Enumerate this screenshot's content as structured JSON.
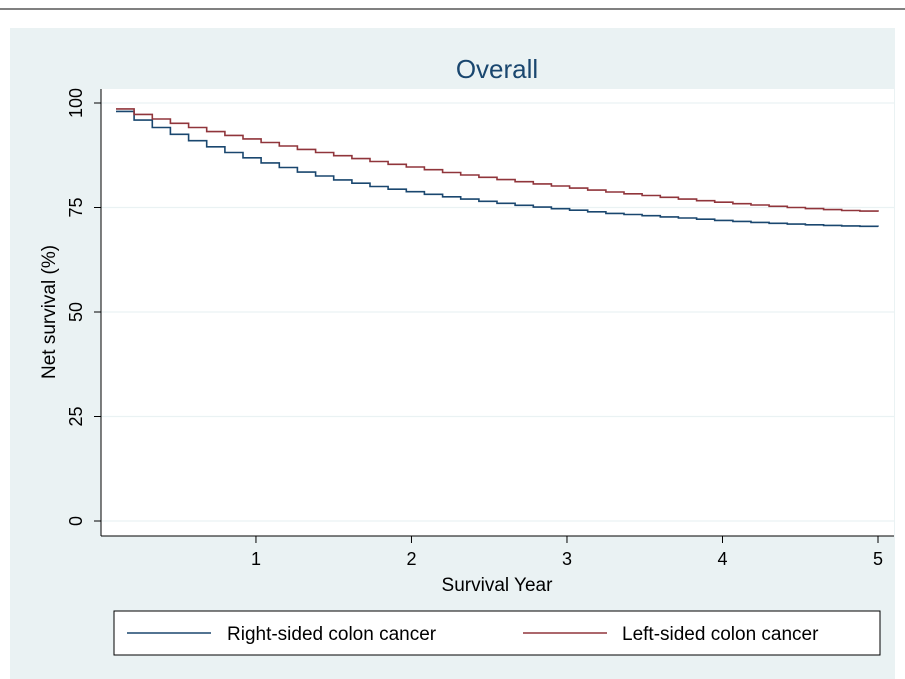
{
  "chart_data": {
    "type": "line",
    "title": "Overall",
    "xlabel": "Survival Year",
    "ylabel": "Net survival (%)",
    "xlim": [
      0.0,
      5.0
    ],
    "ylim": [
      0,
      100
    ],
    "xticks": [
      1,
      2,
      3,
      4,
      5
    ],
    "yticks": [
      0,
      25,
      50,
      75,
      100
    ],
    "grid": true,
    "legend_position": "bottom",
    "colors": {
      "frame_bg": "#eaf2f3",
      "plot_bg": "#ffffff",
      "grid": "#eaf2f3",
      "axis": "#000000",
      "title": "#1a476f"
    },
    "series": [
      {
        "name": "Right-sided colon cancer",
        "color": "#1a476f",
        "x": [
          0.1,
          0.25,
          0.5,
          0.75,
          1.0,
          1.25,
          1.5,
          1.75,
          2.0,
          2.25,
          2.5,
          2.75,
          3.0,
          3.25,
          3.5,
          3.75,
          4.0,
          4.25,
          4.5,
          4.75,
          5.0
        ],
        "y": [
          98.0,
          95.3,
          91.8,
          88.7,
          86.0,
          83.6,
          81.6,
          79.9,
          78.6,
          77.3,
          76.2,
          75.2,
          74.4,
          73.6,
          73.0,
          72.4,
          71.8,
          71.3,
          70.9,
          70.6,
          70.4
        ]
      },
      {
        "name": "Left-sided colon cancer",
        "color": "#90353b",
        "x": [
          0.1,
          0.25,
          0.5,
          0.75,
          1.0,
          1.25,
          1.5,
          1.75,
          2.0,
          2.25,
          2.5,
          2.75,
          3.0,
          3.25,
          3.5,
          3.75,
          4.0,
          4.25,
          4.5,
          4.75,
          5.0
        ],
        "y": [
          98.6,
          96.9,
          94.7,
          92.6,
          90.8,
          89.0,
          87.4,
          85.9,
          84.5,
          83.1,
          81.9,
          80.8,
          79.7,
          78.7,
          77.8,
          76.9,
          76.1,
          75.4,
          74.8,
          74.3,
          74.0
        ]
      }
    ]
  }
}
